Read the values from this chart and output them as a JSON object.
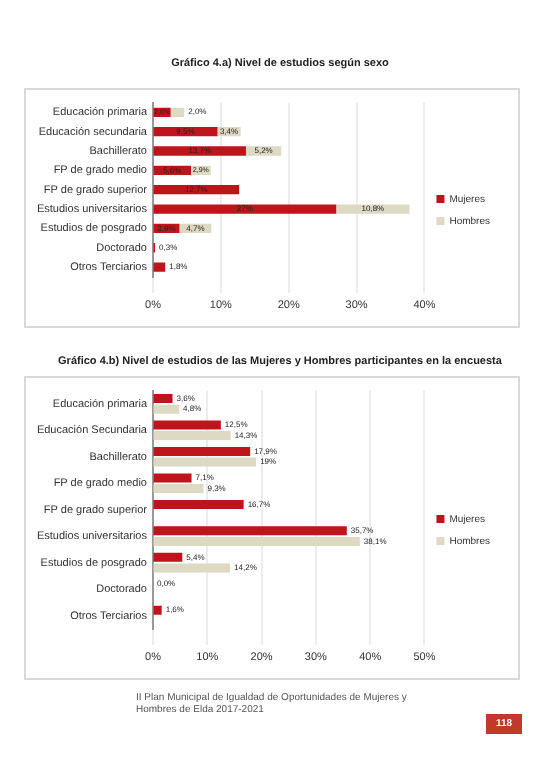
{
  "chart_data": [
    {
      "type": "bar",
      "title": "Gráfico 4.a) Nivel de estudios según sexo",
      "orientation": "horizontal",
      "stacked": true,
      "categories": [
        "Educación primaria",
        "Educación secundaria",
        "Bachillerato",
        "FP de grado medio",
        "FP de grado superior",
        "Estudios universitarios",
        "Estudios de posgrado",
        "Doctorado",
        "Otros Terciarios"
      ],
      "series": [
        {
          "name": "Mujeres",
          "color": "#c0141c",
          "values": [
            2.6,
            9.5,
            13.7,
            5.6,
            12.7,
            27,
            3.9,
            0.3,
            1.8
          ],
          "value_labels": [
            "2,6%",
            "9,5%",
            "13,7%",
            "5,6%",
            "12,7%",
            "27%",
            "3,9%",
            "0,3%",
            "1,8%"
          ]
        },
        {
          "name": "Hombres",
          "color": "#ddd9c3",
          "values": [
            2.0,
            3.4,
            5.2,
            2.9,
            null,
            10.8,
            4.7,
            null,
            null
          ],
          "value_labels": [
            "2,0%",
            "3,4%",
            "5,2%",
            "2,9%",
            null,
            "10,8%",
            "4,7%",
            null,
            null
          ]
        }
      ],
      "xlim": [
        0,
        40
      ],
      "xticks": [
        {
          "value": 0,
          "label": "0%"
        },
        {
          "value": 10,
          "label": "10%"
        },
        {
          "value": 20,
          "label": "20%"
        },
        {
          "value": 30,
          "label": "30%"
        },
        {
          "value": 40,
          "label": "40%"
        }
      ],
      "grid": "x",
      "legend": "right"
    },
    {
      "type": "bar",
      "title": "Gráfico 4.b) Nivel de estudios de las Mujeres y Hombres participantes en la encuesta",
      "orientation": "horizontal",
      "categories": [
        "Educación primaria",
        "Educación Secundaria",
        "Bachillerato",
        "FP de grado medio",
        "FP de grado superior",
        "Estudios universitarios",
        "Estudios de posgrado",
        "Doctorado",
        "Otros Terciarios"
      ],
      "series": [
        {
          "name": "Mujeres",
          "color": "#c0141c",
          "values": [
            3.6,
            12.5,
            17.9,
            7.1,
            16.7,
            35.7,
            5.4,
            0.0,
            1.6
          ],
          "value_labels": [
            "3,6%",
            "12,5%",
            "17,9%",
            "7,1%",
            "16,7%",
            "35,7%",
            "5,4%",
            "0,0%",
            "1,6%"
          ]
        },
        {
          "name": "Hombres",
          "color": "#ddd9c3",
          "values": [
            4.8,
            14.3,
            19,
            9.3,
            null,
            38.1,
            14.2,
            null,
            null
          ],
          "value_labels": [
            "4,8%",
            "14,3%",
            "19%",
            "9,3%",
            null,
            "38,1%",
            "14,2%",
            null,
            null
          ]
        }
      ],
      "xlim": [
        0,
        50
      ],
      "xticks": [
        {
          "value": 0,
          "label": "0%"
        },
        {
          "value": 10,
          "label": "10%"
        },
        {
          "value": 20,
          "label": "20%"
        },
        {
          "value": 30,
          "label": "30%"
        },
        {
          "value": 40,
          "label": "40%"
        },
        {
          "value": 50,
          "label": "50%"
        }
      ],
      "grid": "x",
      "legend": "right",
      "annotations": [
        "II Plan Municipal de Igualdad de Oportunidades de Mujeres y Hombres de Elda 2017-2021",
        "118"
      ]
    }
  ]
}
